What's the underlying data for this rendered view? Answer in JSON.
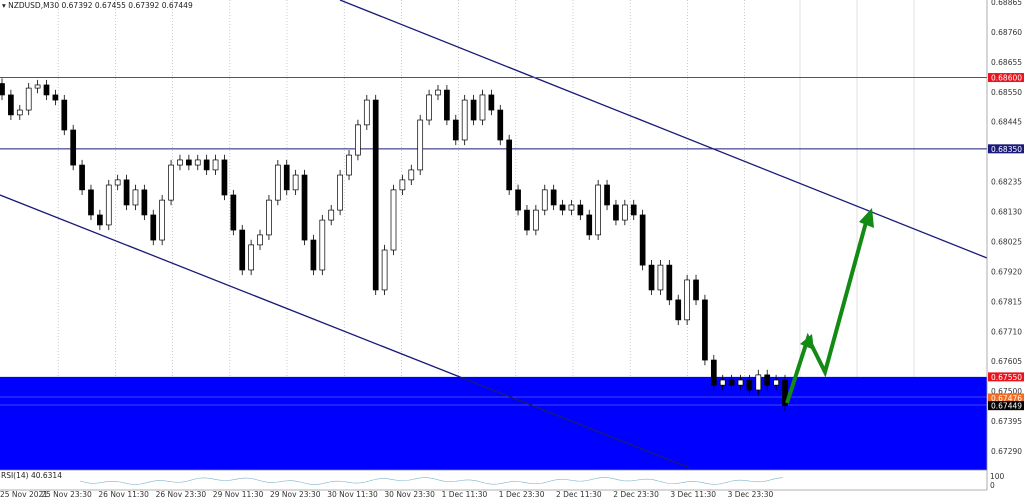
{
  "header": {
    "symbol": "NZDUSD,M30",
    "ohlc": "0.67392 0.67455 0.67392 0.67449"
  },
  "rsi": {
    "label": "RSI(14) 40.6314",
    "axis_top": "100",
    "axis_bottom": "0"
  },
  "colors": {
    "resistance": "#e8141e",
    "support_line": "#1a1a7a",
    "zone": "#0000ff",
    "channel": "#1a1a7a",
    "arrow": "#138a13",
    "candle": "#000000"
  },
  "chart_data": {
    "type": "candlestick",
    "title": "NZDUSD,M30",
    "ylim": [
      0.6723,
      0.6887
    ],
    "grid": true,
    "y_ticks": [
      "0.68865",
      "0.68760",
      "0.68655",
      "0.68550",
      "0.68445",
      "0.68235",
      "0.68130",
      "0.68025",
      "0.67920",
      "0.67815",
      "0.67710",
      "0.67605",
      "0.67500",
      "0.67395",
      "0.67290"
    ],
    "x_ticks": [
      "25 Nov 2021",
      "25 Nov 23:30",
      "26 Nov 11:30",
      "26 Nov 23:30",
      "29 Nov 11:30",
      "29 Nov 23:30",
      "30 Nov 11:30",
      "30 Nov 23:30",
      "1 Dec 11:30",
      "1 Dec 23:30",
      "2 Dec 11:30",
      "2 Dec 23:30",
      "3 Dec 11:30",
      "3 Dec 23:30"
    ],
    "horizontal_lines": [
      {
        "price": "0.68600",
        "color": "#e8141e"
      },
      {
        "price": "0.68350",
        "color": "#1a1a7a"
      }
    ],
    "zone": {
      "top": 0.6755,
      "label": "0.67550"
    },
    "price_labels": [
      {
        "text": "0.67476",
        "color": "#f26b21"
      },
      {
        "text": "0.67449",
        "color": "#000000"
      }
    ],
    "closes": [
      0.68539,
      0.68469,
      0.68486,
      0.68563,
      0.68574,
      0.68539,
      0.68521,
      0.68416,
      0.68293,
      0.68206,
      0.68118,
      0.68083,
      0.68223,
      0.68241,
      0.68153,
      0.68206,
      0.68118,
      0.6803,
      0.6817,
      0.68293,
      0.68311,
      0.68293,
      0.68311,
      0.68276,
      0.68311,
      0.68188,
      0.68065,
      0.67925,
      0.68013,
      0.68048,
      0.6817,
      0.68293,
      0.68206,
      0.68258,
      0.6803,
      0.67925,
      0.681,
      0.68135,
      0.68258,
      0.68328,
      0.68434,
      0.68521,
      0.67855,
      0.67995,
      0.68206,
      0.68241,
      0.68276,
      0.68451,
      0.68539,
      0.68556,
      0.68451,
      0.68381,
      0.68521,
      0.68451,
      0.68539,
      0.68486,
      0.68381,
      0.68206,
      0.68135,
      0.68065,
      0.68135,
      0.68206,
      0.68153,
      0.68135,
      0.68153,
      0.68118,
      0.68048,
      0.68223,
      0.68153,
      0.681,
      0.68153,
      0.68118,
      0.67942,
      0.67855,
      0.67942,
      0.6782,
      0.6775,
      0.6789,
      0.6782,
      0.67609,
      0.67521,
      0.67539,
      0.67521,
      0.67539,
      0.67504,
      0.67557,
      0.67521,
      0.67539,
      0.67449
    ]
  }
}
